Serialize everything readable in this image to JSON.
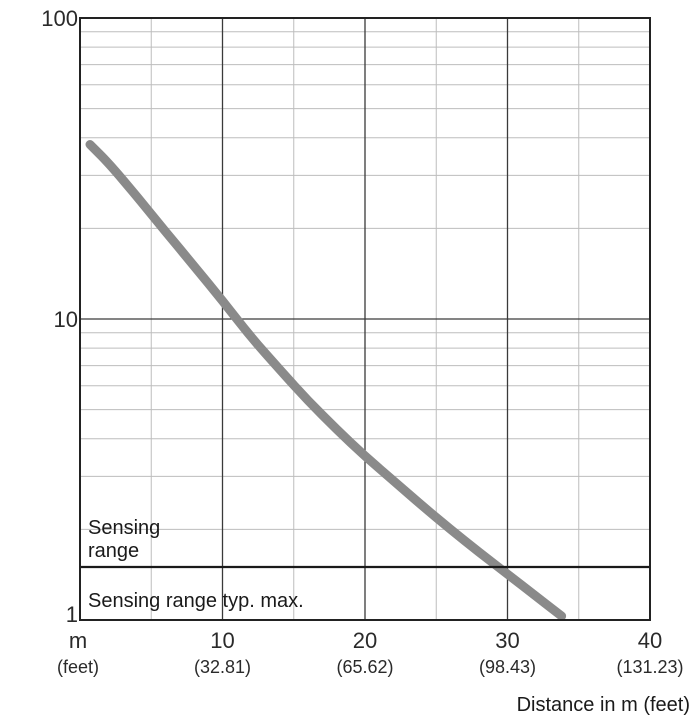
{
  "chart_data": {
    "type": "line",
    "title": "",
    "xlabel": "Distance in m (feet)",
    "ylabel": "",
    "x_scale": "linear",
    "y_scale": "log",
    "xlim": [
      0,
      40
    ],
    "ylim": [
      1,
      100
    ],
    "x_unit_label": "m",
    "x_unit_sub_label": "(feet)",
    "x_ticks": [
      {
        "value": 10,
        "label": "10",
        "sub_label": "(32.81)"
      },
      {
        "value": 20,
        "label": "20",
        "sub_label": "(65.62)"
      },
      {
        "value": 30,
        "label": "30",
        "sub_label": "(98.43)"
      },
      {
        "value": 40,
        "label": "40",
        "sub_label": "(131.23)"
      }
    ],
    "y_ticks": [
      {
        "value": 1,
        "label": "1"
      },
      {
        "value": 10,
        "label": "10"
      },
      {
        "value": 100,
        "label": "100"
      }
    ],
    "grid": true,
    "series": [
      {
        "color": "#8a8a8a",
        "x": [
          0.7,
          2,
          4,
          6,
          8,
          10,
          12,
          14,
          16,
          18,
          20,
          22,
          24,
          26,
          28,
          30,
          32,
          33.8
        ],
        "y": [
          38,
          33,
          25.5,
          19.5,
          15,
          11.5,
          8.7,
          6.8,
          5.35,
          4.3,
          3.5,
          2.9,
          2.4,
          2.0,
          1.68,
          1.42,
          1.2,
          1.03
        ]
      }
    ],
    "reference_line": {
      "y": 1.5,
      "color": "#1a1a1a"
    },
    "annotations": {
      "upper_line1": "Sensing",
      "upper_line2": "range",
      "lower": "Sensing range typ. max."
    }
  }
}
